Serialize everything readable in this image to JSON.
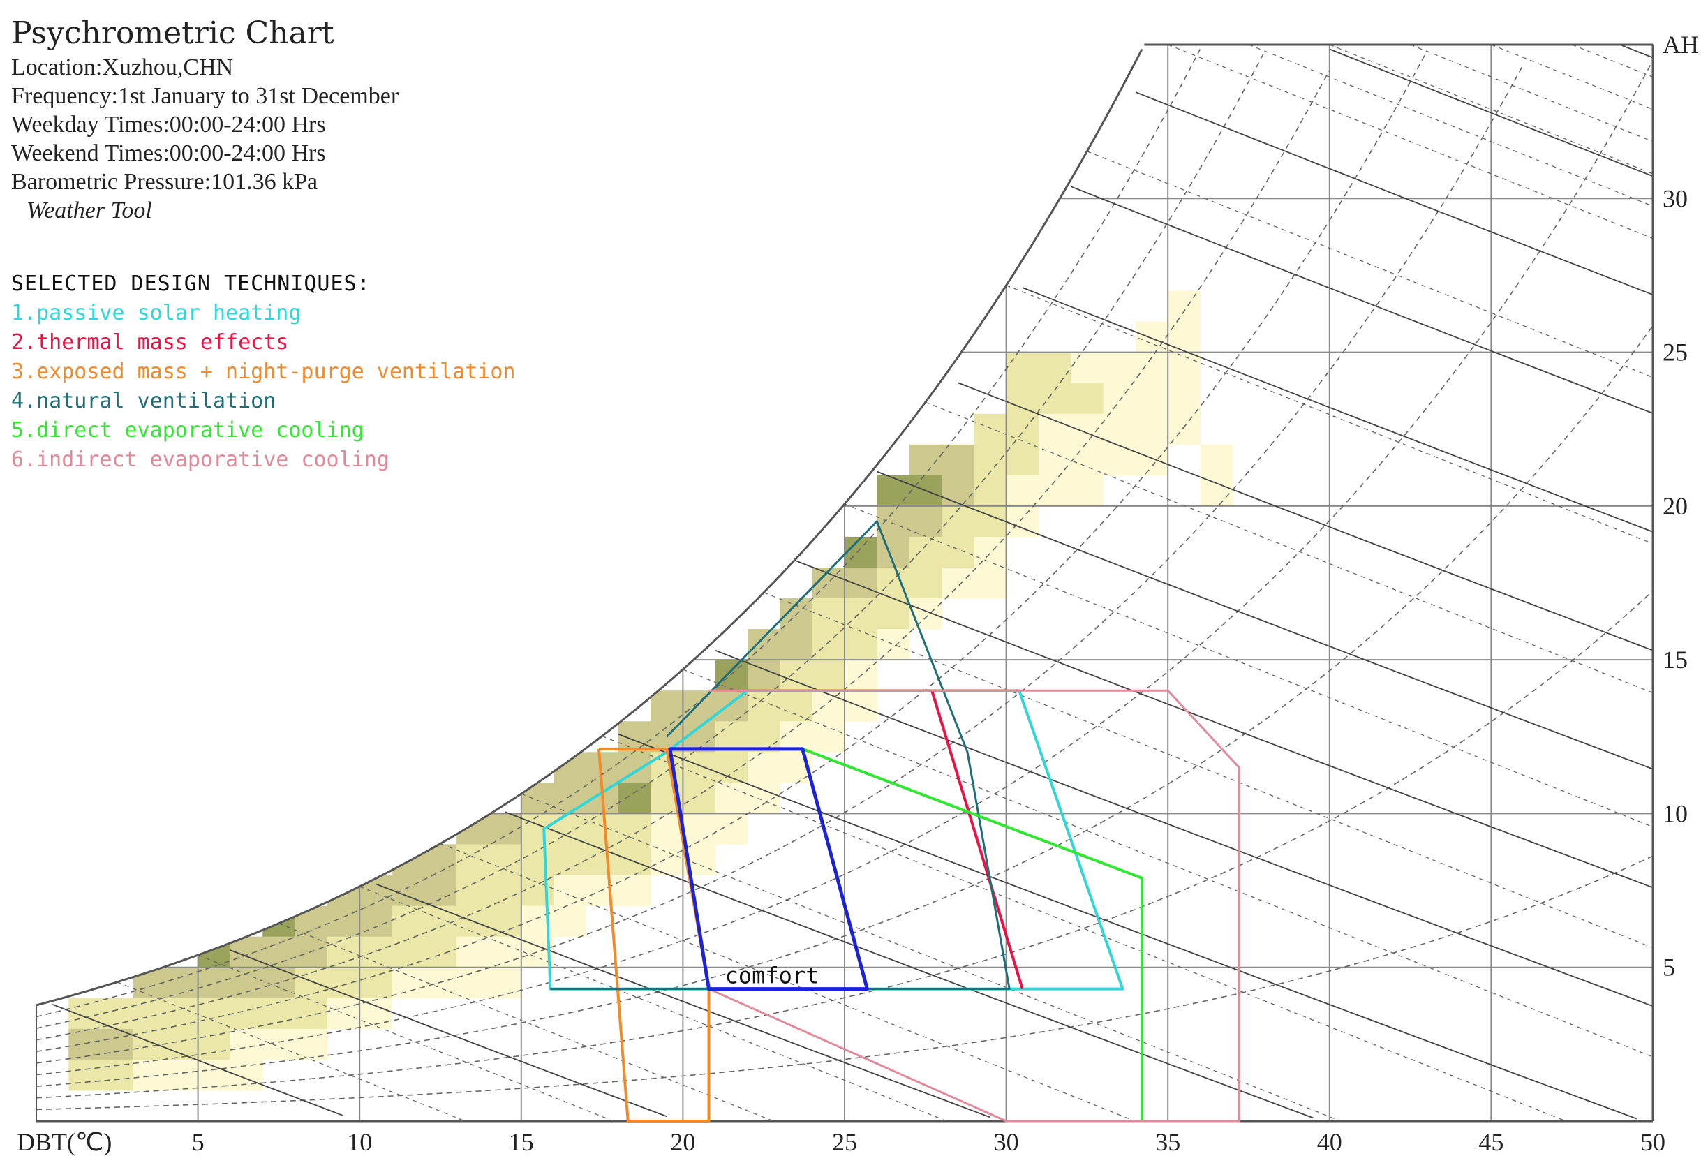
{
  "header": {
    "title": "Psychrometric Chart",
    "lines": [
      "Location:Xuzhou,CHN",
      "Frequency:1st January to 31st December",
      "Weekday Times:00:00-24:00 Hrs",
      "Weekend Times:00:00-24:00 Hrs",
      "Barometric Pressure:101.36 kPa"
    ],
    "tool": "Weather Tool"
  },
  "techniques": {
    "heading": "SELECTED DESIGN TECHNIQUES:",
    "items": [
      {
        "label": "1.passive solar heating",
        "color": "#33d6d6"
      },
      {
        "label": "2.thermal mass effects",
        "color": "#ee1144"
      },
      {
        "label": "3.exposed mass + night-purge ventilation",
        "color": "#f08a2a"
      },
      {
        "label": "4.natural ventilation",
        "color": "#1f6f78"
      },
      {
        "label": "5.direct evaporative cooling",
        "color": "#33e633"
      },
      {
        "label": "6.indirect evaporative cooling",
        "color": "#e08a9a"
      }
    ]
  },
  "chart_data": {
    "type": "psychrometric",
    "title": "Psychrometric Chart",
    "xlabel": "DBT(℃)",
    "ylabel": "AH",
    "xlim": [
      0,
      50
    ],
    "ylim": [
      0,
      35
    ],
    "x_ticks": [
      5,
      10,
      15,
      20,
      25,
      30,
      35,
      40,
      45,
      50
    ],
    "y_ticks": [
      5,
      10,
      15,
      20,
      25,
      30
    ],
    "comfort_label": "comfort",
    "colors": {
      "grid": "#8a8a8a",
      "saturation": "#555555",
      "enthalpy": "#444444",
      "dashed": "#666666",
      "heat_low": "#fdf9d4",
      "heat_mid": "#ebe7a9",
      "heat_midhigh": "#cdc98e",
      "heat_high": "#9aa25c",
      "heat_max": "#6e7a2a"
    },
    "frequency_cells": [
      [
        1,
        3,
        2
      ],
      [
        1,
        2,
        3
      ],
      [
        1,
        1,
        2
      ],
      [
        2,
        3,
        2
      ],
      [
        2,
        2,
        3
      ],
      [
        2,
        1,
        2
      ],
      [
        3,
        4,
        3
      ],
      [
        3,
        3,
        2
      ],
      [
        3,
        2,
        2
      ],
      [
        3,
        1,
        1
      ],
      [
        4,
        4,
        3
      ],
      [
        4,
        3,
        2
      ],
      [
        4,
        2,
        2
      ],
      [
        4,
        1,
        1
      ],
      [
        5,
        5,
        4
      ],
      [
        5,
        4,
        3
      ],
      [
        5,
        3,
        2
      ],
      [
        5,
        2,
        2
      ],
      [
        5,
        1,
        1
      ],
      [
        6,
        5,
        3
      ],
      [
        6,
        4,
        3
      ],
      [
        6,
        3,
        2
      ],
      [
        6,
        2,
        1
      ],
      [
        6,
        1,
        1
      ],
      [
        7,
        6,
        4
      ],
      [
        7,
        5,
        3
      ],
      [
        7,
        4,
        3
      ],
      [
        7,
        3,
        2
      ],
      [
        7,
        2,
        1
      ],
      [
        8,
        6,
        3
      ],
      [
        8,
        5,
        3
      ],
      [
        8,
        4,
        2
      ],
      [
        8,
        3,
        2
      ],
      [
        8,
        2,
        1
      ],
      [
        9,
        7,
        3
      ],
      [
        9,
        6,
        3
      ],
      [
        9,
        5,
        2
      ],
      [
        9,
        4,
        2
      ],
      [
        9,
        3,
        1
      ],
      [
        10,
        7,
        3
      ],
      [
        10,
        6,
        3
      ],
      [
        10,
        5,
        2
      ],
      [
        10,
        4,
        2
      ],
      [
        10,
        3,
        1
      ],
      [
        11,
        8,
        3
      ],
      [
        11,
        7,
        3
      ],
      [
        11,
        6,
        2
      ],
      [
        11,
        5,
        2
      ],
      [
        11,
        4,
        1
      ],
      [
        12,
        8,
        3
      ],
      [
        12,
        7,
        3
      ],
      [
        12,
        6,
        2
      ],
      [
        12,
        5,
        2
      ],
      [
        12,
        4,
        1
      ],
      [
        13,
        9,
        3
      ],
      [
        13,
        8,
        2
      ],
      [
        13,
        7,
        2
      ],
      [
        13,
        6,
        2
      ],
      [
        13,
        5,
        1
      ],
      [
        13,
        4,
        1
      ],
      [
        14,
        9,
        3
      ],
      [
        14,
        8,
        2
      ],
      [
        14,
        7,
        2
      ],
      [
        14,
        6,
        2
      ],
      [
        14,
        5,
        1
      ],
      [
        14,
        4,
        1
      ],
      [
        15,
        10,
        3
      ],
      [
        15,
        9,
        2
      ],
      [
        15,
        8,
        2
      ],
      [
        15,
        7,
        2
      ],
      [
        15,
        6,
        1
      ],
      [
        15,
        5,
        1
      ],
      [
        16,
        11,
        3
      ],
      [
        16,
        10,
        3
      ],
      [
        16,
        9,
        2
      ],
      [
        16,
        8,
        2
      ],
      [
        16,
        7,
        1
      ],
      [
        16,
        6,
        1
      ],
      [
        17,
        11,
        3
      ],
      [
        17,
        10,
        3
      ],
      [
        17,
        9,
        2
      ],
      [
        17,
        8,
        2
      ],
      [
        17,
        7,
        1
      ],
      [
        18,
        12,
        3
      ],
      [
        18,
        11,
        3
      ],
      [
        18,
        10,
        4
      ],
      [
        18,
        9,
        2
      ],
      [
        18,
        8,
        2
      ],
      [
        18,
        7,
        1
      ],
      [
        19,
        13,
        3
      ],
      [
        19,
        12,
        3
      ],
      [
        19,
        11,
        2
      ],
      [
        19,
        10,
        2
      ],
      [
        19,
        9,
        1
      ],
      [
        19,
        8,
        1
      ],
      [
        20,
        13,
        3
      ],
      [
        20,
        12,
        3
      ],
      [
        20,
        11,
        2
      ],
      [
        20,
        10,
        2
      ],
      [
        20,
        9,
        1
      ],
      [
        20,
        8,
        1
      ],
      [
        21,
        14,
        4
      ],
      [
        21,
        13,
        3
      ],
      [
        21,
        12,
        2
      ],
      [
        21,
        11,
        2
      ],
      [
        21,
        10,
        1
      ],
      [
        21,
        9,
        1
      ],
      [
        22,
        15,
        3
      ],
      [
        22,
        14,
        3
      ],
      [
        22,
        13,
        2
      ],
      [
        22,
        12,
        2
      ],
      [
        22,
        11,
        1
      ],
      [
        22,
        10,
        1
      ],
      [
        23,
        16,
        3
      ],
      [
        23,
        15,
        3
      ],
      [
        23,
        14,
        2
      ],
      [
        23,
        13,
        2
      ],
      [
        23,
        12,
        1
      ],
      [
        23,
        11,
        1
      ],
      [
        24,
        17,
        3
      ],
      [
        24,
        16,
        2
      ],
      [
        24,
        15,
        2
      ],
      [
        24,
        14,
        2
      ],
      [
        24,
        13,
        1
      ],
      [
        24,
        12,
        1
      ],
      [
        25,
        18,
        4
      ],
      [
        25,
        17,
        3
      ],
      [
        25,
        16,
        2
      ],
      [
        25,
        15,
        2
      ],
      [
        25,
        14,
        1
      ],
      [
        25,
        13,
        1
      ],
      [
        26,
        20,
        4
      ],
      [
        26,
        19,
        3
      ],
      [
        26,
        18,
        3
      ],
      [
        26,
        17,
        2
      ],
      [
        26,
        16,
        2
      ],
      [
        26,
        15,
        1
      ],
      [
        27,
        21,
        3
      ],
      [
        27,
        20,
        4
      ],
      [
        27,
        19,
        3
      ],
      [
        27,
        18,
        2
      ],
      [
        27,
        17,
        2
      ],
      [
        27,
        16,
        1
      ],
      [
        28,
        21,
        3
      ],
      [
        28,
        20,
        3
      ],
      [
        28,
        19,
        2
      ],
      [
        28,
        18,
        2
      ],
      [
        28,
        17,
        1
      ],
      [
        29,
        22,
        2
      ],
      [
        29,
        21,
        2
      ],
      [
        29,
        20,
        2
      ],
      [
        29,
        19,
        2
      ],
      [
        29,
        18,
        1
      ],
      [
        29,
        17,
        1
      ],
      [
        30,
        24,
        2
      ],
      [
        30,
        23,
        2
      ],
      [
        30,
        22,
        2
      ],
      [
        30,
        21,
        2
      ],
      [
        30,
        20,
        1
      ],
      [
        30,
        19,
        1
      ],
      [
        31,
        24,
        2
      ],
      [
        31,
        23,
        2
      ],
      [
        31,
        22,
        1
      ],
      [
        31,
        21,
        1
      ],
      [
        31,
        20,
        1
      ],
      [
        32,
        24,
        1
      ],
      [
        32,
        23,
        2
      ],
      [
        32,
        22,
        1
      ],
      [
        32,
        21,
        1
      ],
      [
        32,
        20,
        1
      ],
      [
        33,
        24,
        1
      ],
      [
        33,
        23,
        1
      ],
      [
        33,
        22,
        1
      ],
      [
        33,
        21,
        1
      ],
      [
        34,
        25,
        1
      ],
      [
        34,
        24,
        1
      ],
      [
        34,
        23,
        1
      ],
      [
        34,
        22,
        1
      ],
      [
        34,
        21,
        1
      ],
      [
        35,
        26,
        1
      ],
      [
        35,
        25,
        1
      ],
      [
        35,
        24,
        1
      ],
      [
        35,
        23,
        1
      ],
      [
        35,
        22,
        1
      ],
      [
        36,
        21,
        1
      ],
      [
        36,
        20,
        1
      ]
    ],
    "zones": [
      {
        "name": "passive solar heating",
        "color": "#33d6d6",
        "width": 4,
        "points": [
          [
            15.7,
            9.5
          ],
          [
            19.5,
            12
          ],
          [
            22,
            14
          ],
          [
            30.4,
            14
          ],
          [
            33.6,
            4.3
          ],
          [
            15.9,
            4.3
          ]
        ]
      },
      {
        "name": "thermal mass effects",
        "color": "#ee1144",
        "width": 4,
        "points": [
          [
            27.7,
            14
          ],
          [
            30.5,
            4.3
          ]
        ]
      },
      {
        "name": "exposed mass + night-purge ventilation",
        "color": "#f08a2a",
        "width": 4,
        "points": [
          [
            17.4,
            12.1
          ],
          [
            19.5,
            12.1
          ],
          [
            20.8,
            4.3
          ],
          [
            20.8,
            0
          ],
          [
            18.3,
            0
          ],
          [
            17.4,
            12.1
          ]
        ]
      },
      {
        "name": "natural ventilation",
        "color": "#1f6f78",
        "width": 3,
        "points": [
          [
            19.5,
            12.5
          ],
          [
            26,
            19.5
          ],
          [
            28.8,
            12
          ],
          [
            30.1,
            4.3
          ],
          [
            15.9,
            4.3
          ]
        ]
      },
      {
        "name": "direct evaporative cooling",
        "color": "#33e633",
        "width": 4,
        "points": [
          [
            23.7,
            12.1
          ],
          [
            34.2,
            7.9
          ],
          [
            34.2,
            0
          ]
        ]
      },
      {
        "name": "indirect evaporative cooling",
        "color": "#e08a9a",
        "width": 3,
        "points": [
          [
            20.8,
            14
          ],
          [
            35,
            14
          ],
          [
            37.2,
            11.5
          ],
          [
            37.2,
            0
          ],
          [
            30,
            0
          ],
          [
            20.8,
            4.3
          ]
        ]
      },
      {
        "name": "comfort",
        "color": "#1a23d6",
        "width": 5,
        "points": [
          [
            19.6,
            12.1
          ],
          [
            23.7,
            12.1
          ],
          [
            25.7,
            4.3
          ],
          [
            20.8,
            4.3
          ]
        ]
      }
    ]
  }
}
